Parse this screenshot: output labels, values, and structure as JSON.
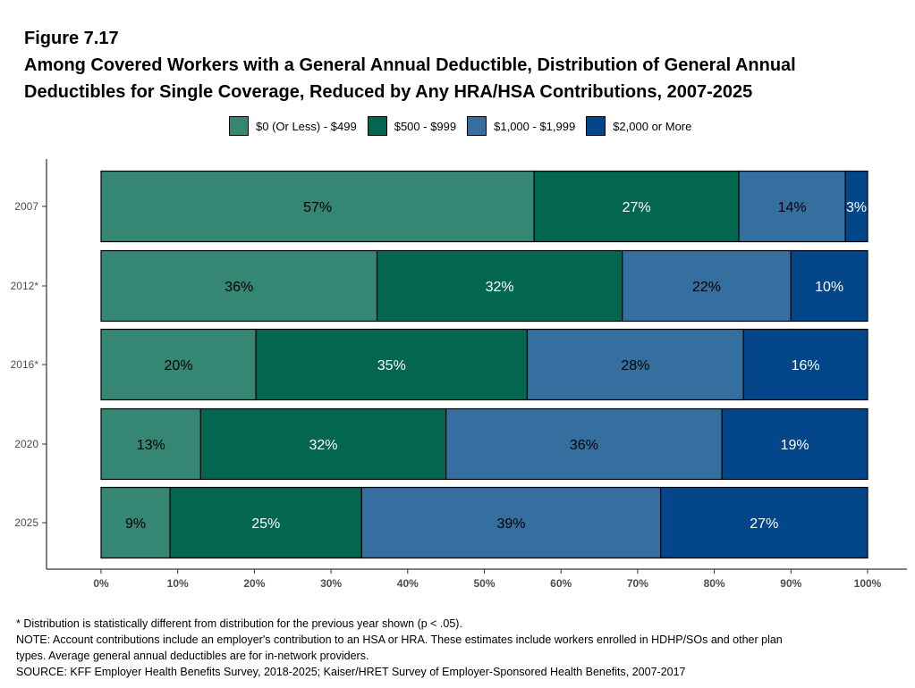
{
  "figure_label": "Figure 7.17",
  "title_line1": "Among Covered Workers with a General Annual Deductible, Distribution of General Annual",
  "title_line2": "Deductibles for Single Coverage, Reduced by Any HRA/HSA Contributions, 2007-2025",
  "notes": {
    "footnote": "* Distribution is statistically different from distribution for the previous year shown (p < .05).",
    "note_line1": "NOTE: Account contributions include an employer's contribution to an HSA or HRA. These estimates include workers enrolled in HDHP/SOs and other plan",
    "note_line2": "types. Average general annual deductibles are for in-network providers.",
    "source": "SOURCE: KFF Employer Health Benefits Survey, 2018-2025; Kaiser/HRET Survey of Employer-Sponsored Health Benefits, 2007-2017"
  },
  "chart_data": {
    "type": "bar",
    "orientation": "horizontal",
    "stacked": true,
    "categories": [
      "2007",
      "2012*",
      "2016*",
      "2020",
      "2025"
    ],
    "series": [
      {
        "name": "$0 (Or Less) - $499",
        "color": "#358672",
        "label_color": "#000000",
        "values": [
          56.5,
          36,
          20.2,
          13,
          9
        ],
        "labels": [
          "57%",
          "36%",
          "20%",
          "13%",
          "9%"
        ]
      },
      {
        "name": "$500 - $999",
        "color": "#03664F",
        "label_color": "#FFFFFF",
        "values": [
          26.7,
          32,
          35.4,
          32,
          25
        ],
        "labels": [
          "27%",
          "32%",
          "35%",
          "32%",
          "25%"
        ]
      },
      {
        "name": "$1,000 - $1,999",
        "color": "#356FA0",
        "label_color": "#000000",
        "values": [
          13.9,
          22,
          28.2,
          36,
          39
        ],
        "labels": [
          "14%",
          "22%",
          "28%",
          "36%",
          "39%"
        ]
      },
      {
        "name": "$2,000 or More",
        "color": "#03478A",
        "label_color": "#FFFFFF",
        "values": [
          2.9,
          10,
          16.2,
          19,
          27
        ],
        "labels": [
          "3%",
          "10%",
          "16%",
          "19%",
          "27%"
        ]
      }
    ],
    "x_ticks": [
      "0%",
      "10%",
      "20%",
      "30%",
      "40%",
      "50%",
      "60%",
      "70%",
      "80%",
      "90%",
      "100%"
    ],
    "xlim": [
      0,
      100
    ],
    "grid": false,
    "legend_position": "top"
  }
}
